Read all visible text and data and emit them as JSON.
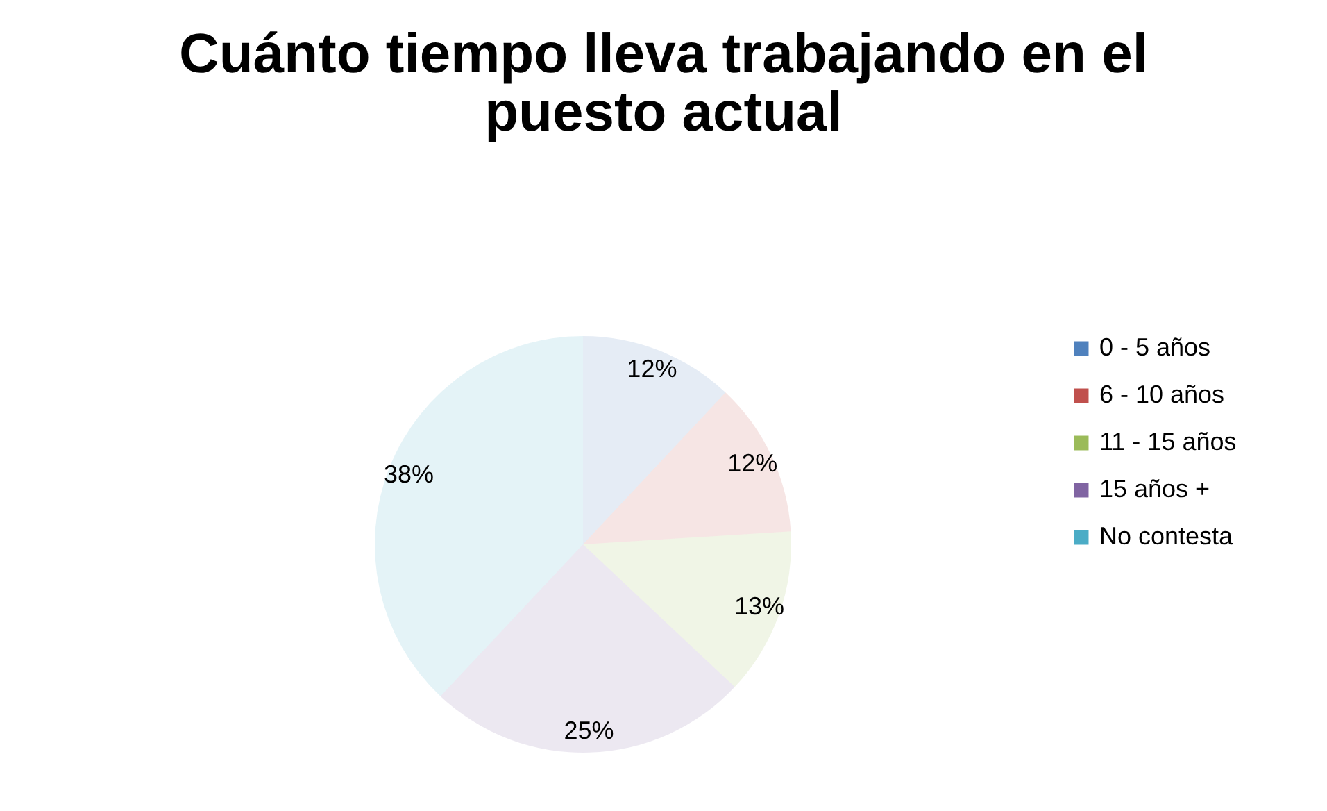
{
  "chart_data": {
    "type": "pie",
    "title": "Cuánto tiempo lleva trabajando en el puesto actual",
    "categories": [
      "0 - 5 años",
      "6 - 10 años",
      "11 - 15 años",
      "15 años +",
      "No contesta"
    ],
    "values": [
      12,
      12,
      13,
      25,
      38
    ],
    "value_labels": [
      "12%",
      "12%",
      "13%",
      "25%",
      "38%"
    ],
    "colors": [
      "#4f81bd",
      "#c0504d",
      "#9bbb59",
      "#8064a2",
      "#4bacc6"
    ],
    "legend": "right"
  }
}
